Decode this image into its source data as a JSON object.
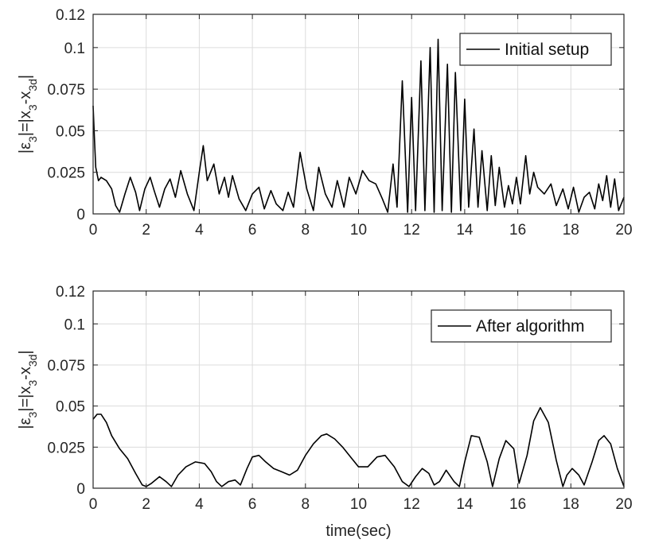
{
  "chart_data": [
    {
      "type": "line",
      "title": "",
      "xlabel": "",
      "ylabel": "|ε3|=|x3-x3d|",
      "xlim": [
        0,
        20
      ],
      "ylim": [
        0,
        0.12
      ],
      "x_ticks": [
        0,
        2,
        4,
        6,
        8,
        10,
        12,
        14,
        16,
        18,
        20
      ],
      "y_ticks": [
        0,
        0.025,
        0.05,
        0.075,
        0.1,
        0.12
      ],
      "y_tick_labels": [
        "0",
        "0.025",
        "0.05",
        "0.075",
        "0.1",
        "0.12"
      ],
      "grid": true,
      "legend_position": "top-right",
      "line_color": "#000000",
      "series": [
        {
          "name": "Initial setup",
          "x": [
            0,
            0.05,
            0.1,
            0.2,
            0.3,
            0.5,
            0.7,
            0.85,
            1.0,
            1.2,
            1.4,
            1.6,
            1.75,
            1.95,
            2.15,
            2.3,
            2.5,
            2.7,
            2.9,
            3.1,
            3.3,
            3.55,
            3.8,
            4.0,
            4.15,
            4.3,
            4.55,
            4.75,
            4.95,
            5.1,
            5.25,
            5.5,
            5.75,
            6.0,
            6.25,
            6.45,
            6.7,
            6.9,
            7.15,
            7.35,
            7.55,
            7.8,
            8.05,
            8.3,
            8.5,
            8.75,
            9.0,
            9.2,
            9.45,
            9.65,
            9.9,
            10.15,
            10.4,
            10.65,
            10.9,
            11.1,
            11.3,
            11.45,
            11.65,
            11.85,
            12.0,
            12.15,
            12.35,
            12.5,
            12.7,
            12.85,
            13.0,
            13.15,
            13.35,
            13.5,
            13.65,
            13.85,
            14.0,
            14.15,
            14.35,
            14.5,
            14.65,
            14.85,
            15.0,
            15.15,
            15.3,
            15.5,
            15.65,
            15.8,
            15.95,
            16.1,
            16.3,
            16.45,
            16.6,
            16.75,
            17.0,
            17.25,
            17.45,
            17.7,
            17.9,
            18.1,
            18.3,
            18.5,
            18.7,
            18.9,
            19.05,
            19.2,
            19.35,
            19.5,
            19.65,
            19.8,
            20.0
          ],
          "y": [
            0.065,
            0.045,
            0.028,
            0.02,
            0.022,
            0.02,
            0.015,
            0.005,
            0.001,
            0.012,
            0.022,
            0.013,
            0.002,
            0.015,
            0.022,
            0.014,
            0.004,
            0.015,
            0.021,
            0.01,
            0.026,
            0.012,
            0.002,
            0.025,
            0.041,
            0.02,
            0.03,
            0.012,
            0.022,
            0.01,
            0.023,
            0.009,
            0.002,
            0.012,
            0.016,
            0.003,
            0.014,
            0.006,
            0.002,
            0.013,
            0.004,
            0.037,
            0.015,
            0.002,
            0.028,
            0.012,
            0.004,
            0.02,
            0.004,
            0.022,
            0.012,
            0.026,
            0.02,
            0.018,
            0.009,
            0.001,
            0.03,
            0.004,
            0.08,
            0.001,
            0.07,
            0.002,
            0.092,
            0.002,
            0.1,
            0.001,
            0.105,
            0.002,
            0.09,
            0.001,
            0.085,
            0.002,
            0.069,
            0.004,
            0.051,
            0.004,
            0.038,
            0.002,
            0.035,
            0.005,
            0.028,
            0.004,
            0.017,
            0.006,
            0.022,
            0.006,
            0.035,
            0.012,
            0.025,
            0.016,
            0.012,
            0.018,
            0.005,
            0.015,
            0.003,
            0.016,
            0.001,
            0.01,
            0.013,
            0.003,
            0.018,
            0.008,
            0.023,
            0.004,
            0.021,
            0.002,
            0.01
          ]
        }
      ]
    },
    {
      "type": "line",
      "title": "",
      "xlabel": "time(sec)",
      "ylabel": "|ε3|=|x3-x3d|",
      "xlim": [
        0,
        20
      ],
      "ylim": [
        0,
        0.12
      ],
      "x_ticks": [
        0,
        2,
        4,
        6,
        8,
        10,
        12,
        14,
        16,
        18,
        20
      ],
      "y_ticks": [
        0,
        0.025,
        0.05,
        0.075,
        0.1,
        0.12
      ],
      "y_tick_labels": [
        "0",
        "0.025",
        "0.05",
        "0.075",
        "0.1",
        "0.12"
      ],
      "grid": true,
      "legend_position": "top-right",
      "line_color": "#000000",
      "series": [
        {
          "name": "After algorithm",
          "x": [
            0,
            0.15,
            0.3,
            0.5,
            0.7,
            1.0,
            1.3,
            1.6,
            1.85,
            2.0,
            2.2,
            2.5,
            2.75,
            2.95,
            3.2,
            3.5,
            3.85,
            4.2,
            4.45,
            4.65,
            4.85,
            5.1,
            5.35,
            5.55,
            5.8,
            6.0,
            6.25,
            6.5,
            6.8,
            7.1,
            7.4,
            7.7,
            8.0,
            8.3,
            8.6,
            8.8,
            9.1,
            9.4,
            9.7,
            10.0,
            10.35,
            10.7,
            11.0,
            11.35,
            11.65,
            11.9,
            12.15,
            12.4,
            12.65,
            12.85,
            13.05,
            13.3,
            13.6,
            13.8,
            14.0,
            14.25,
            14.55,
            14.85,
            15.05,
            15.3,
            15.55,
            15.85,
            16.05,
            16.35,
            16.6,
            16.85,
            17.15,
            17.45,
            17.7,
            17.85,
            18.05,
            18.3,
            18.5,
            18.8,
            19.05,
            19.25,
            19.5,
            19.75,
            20.0
          ],
          "y": [
            0.042,
            0.045,
            0.045,
            0.04,
            0.032,
            0.024,
            0.018,
            0.009,
            0.002,
            0.001,
            0.003,
            0.007,
            0.004,
            0.001,
            0.008,
            0.013,
            0.016,
            0.015,
            0.01,
            0.004,
            0.001,
            0.004,
            0.005,
            0.002,
            0.012,
            0.019,
            0.02,
            0.016,
            0.012,
            0.01,
            0.008,
            0.011,
            0.02,
            0.027,
            0.032,
            0.033,
            0.03,
            0.025,
            0.019,
            0.013,
            0.013,
            0.019,
            0.02,
            0.013,
            0.004,
            0.001,
            0.007,
            0.012,
            0.009,
            0.002,
            0.004,
            0.011,
            0.004,
            0.001,
            0.016,
            0.032,
            0.031,
            0.016,
            0.001,
            0.018,
            0.029,
            0.024,
            0.003,
            0.02,
            0.041,
            0.049,
            0.04,
            0.017,
            0.001,
            0.008,
            0.012,
            0.008,
            0.002,
            0.016,
            0.029,
            0.032,
            0.027,
            0.012,
            0.001
          ]
        }
      ]
    }
  ]
}
